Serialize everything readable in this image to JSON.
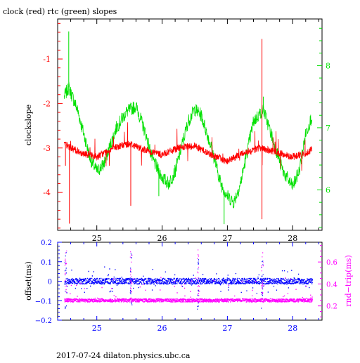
{
  "title": "clock (red) rtc (green) slopes",
  "footer": "2017-07-24  dilaton.physics.ubc.ca",
  "colors": {
    "clock": "#ff0000",
    "rtc": "#00e000",
    "offset": "#0000ff",
    "roundtrip": "#ff00ff",
    "axis": "#000000"
  },
  "top_panel": {
    "ylabel_left": "clockslope",
    "xlim": [
      24.4,
      28.45
    ],
    "ylim_left": [
      -4.85,
      -0.1
    ],
    "ylim_right": [
      5.35,
      8.75
    ],
    "xticks": [
      "25",
      "26",
      "27",
      "28"
    ],
    "yticks_left": [
      "-1",
      "-2",
      "-3",
      "-4"
    ],
    "yticks_right": [
      "8",
      "7",
      "6"
    ]
  },
  "bottom_panel": {
    "ylabel_left": "offset(ms)",
    "ylabel_right": "rnd−trip(ms)",
    "xlim": [
      24.4,
      28.45
    ],
    "ylim_left": [
      -0.2,
      0.2
    ],
    "ylim_right": [
      0.07,
      0.78
    ],
    "xticks": [
      "25",
      "26",
      "27",
      "28"
    ],
    "yticks_left": [
      "0.2",
      "0.1",
      "0",
      "−0.1",
      "−0.2"
    ],
    "yticks_right": [
      "0.6",
      "0.4",
      "0.2"
    ]
  },
  "chart_data": [
    {
      "type": "line",
      "title": "clock (red) rtc (green) slopes",
      "xlabel": "",
      "ylabel": "clockslope",
      "xlim": [
        24.4,
        28.45
      ],
      "ylim": [
        -4.85,
        -0.1
      ],
      "y2lim": [
        5.35,
        8.75
      ],
      "grid": false,
      "series": [
        {
          "name": "clock (red)",
          "axis": "left",
          "x": [
            24.5,
            24.6,
            24.75,
            25.0,
            25.25,
            25.5,
            25.75,
            26.0,
            26.25,
            26.5,
            26.75,
            27.0,
            27.25,
            27.5,
            27.75,
            28.0,
            28.25,
            28.3
          ],
          "y": [
            -2.9,
            -3.0,
            -3.1,
            -3.2,
            -3.0,
            -2.9,
            -3.05,
            -3.15,
            -3.0,
            -2.95,
            -3.15,
            -3.3,
            -3.1,
            -3.0,
            -3.1,
            -3.2,
            -3.1,
            -3.0
          ]
        },
        {
          "name": "rtc (green)",
          "axis": "right",
          "x": [
            24.5,
            24.57,
            24.7,
            24.8,
            24.9,
            25.0,
            25.1,
            25.2,
            25.3,
            25.45,
            25.6,
            25.75,
            25.85,
            26.0,
            26.1,
            26.2,
            26.3,
            26.4,
            26.5,
            26.6,
            26.75,
            26.9,
            27.0,
            27.1,
            27.2,
            27.3,
            27.4,
            27.55,
            27.7,
            27.85,
            28.0,
            28.1,
            28.2,
            28.3
          ],
          "y": [
            7.5,
            7.65,
            7.3,
            6.9,
            6.5,
            6.3,
            6.4,
            6.7,
            7.0,
            7.25,
            7.35,
            6.9,
            6.5,
            6.2,
            6.1,
            6.3,
            6.7,
            7.1,
            7.3,
            7.2,
            6.7,
            6.1,
            5.9,
            5.8,
            6.1,
            6.6,
            7.1,
            7.3,
            6.8,
            6.3,
            6.05,
            6.3,
            6.9,
            7.2
          ]
        }
      ]
    },
    {
      "type": "scatter",
      "xlabel": "",
      "ylabel": "offset(ms)",
      "y2label": "rnd−trip(ms)",
      "xlim": [
        24.4,
        28.45
      ],
      "ylim": [
        -0.2,
        0.2
      ],
      "y2lim": [
        0.07,
        0.78
      ],
      "grid": false,
      "series": [
        {
          "name": "offset",
          "axis": "left",
          "x": [
            24.5,
            25.0,
            25.5,
            26.0,
            26.5,
            27.0,
            27.5,
            28.0,
            28.3
          ],
          "y": [
            0.0,
            0.0,
            0.0,
            0.0,
            0.0,
            0.0,
            0.0,
            0.0,
            0.0
          ]
        },
        {
          "name": "rnd-trip",
          "axis": "right",
          "x": [
            24.5,
            25.0,
            25.5,
            26.0,
            26.5,
            27.0,
            27.5,
            28.0,
            28.3
          ],
          "y": [
            0.25,
            0.25,
            0.25,
            0.25,
            0.25,
            0.25,
            0.25,
            0.25,
            0.25
          ]
        }
      ]
    }
  ]
}
